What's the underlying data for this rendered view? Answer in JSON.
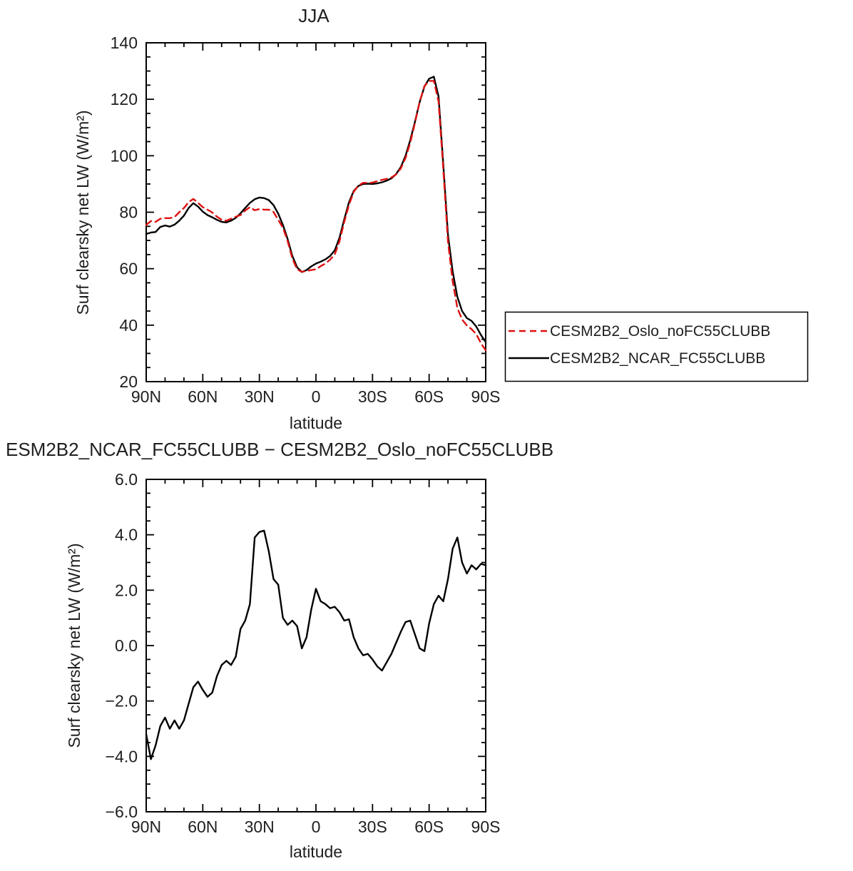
{
  "page": {
    "background": "#ffffff"
  },
  "colors": {
    "axis": "#000000",
    "series_red": "#dd1111",
    "series_black": "#000000",
    "text": "#1f1f1f"
  },
  "chart_data": [
    {
      "type": "line",
      "title": "JJA",
      "xlabel": "latitude",
      "ylabel": "Surf clearsky net LW (W/m²)",
      "xlim": [
        90,
        -90
      ],
      "ylim": [
        20,
        140
      ],
      "xtick_values": [
        90,
        60,
        30,
        0,
        -30,
        -60,
        -90
      ],
      "xtick_labels": [
        "90N",
        "60N",
        "30N",
        "0",
        "30S",
        "60S",
        "90S"
      ],
      "x_minor_step": 10,
      "ytick_values": [
        20,
        40,
        60,
        80,
        100,
        120,
        140
      ],
      "ytick_labels": [
        "20",
        "40",
        "60",
        "80",
        "100",
        "120",
        "140"
      ],
      "y_minor_step": 5,
      "grid": false,
      "legend_position": "outside-right-bottom",
      "x": [
        90,
        87.5,
        85,
        82.5,
        80,
        77.5,
        75,
        72.5,
        70,
        67.5,
        65,
        62.5,
        60,
        57.5,
        55,
        52.5,
        50,
        47.5,
        45,
        42.5,
        40,
        37.5,
        35,
        32.5,
        30,
        27.5,
        25,
        22.5,
        20,
        17.5,
        15,
        12.5,
        10,
        7.5,
        5,
        2.5,
        0,
        -2.5,
        -5,
        -7.5,
        -10,
        -12.5,
        -15,
        -17.5,
        -20,
        -22.5,
        -25,
        -27.5,
        -30,
        -32.5,
        -35,
        -37.5,
        -40,
        -42.5,
        -45,
        -47.5,
        -50,
        -52.5,
        -55,
        -57.5,
        -60,
        -62.5,
        -65,
        -67.5,
        -70,
        -72.5,
        -75,
        -77.5,
        -80,
        -82.5,
        -85,
        -87.5,
        -90
      ],
      "series": [
        {
          "name": "CESM2B2_Oslo_noFC55CLUBB",
          "color": "#dd1111",
          "style": "dashed",
          "dash": "9 6",
          "values": [
            75.5,
            76.9,
            76.6,
            77.7,
            77.9,
            77.9,
            78.3,
            80.0,
            81.5,
            83.6,
            84.7,
            83.3,
            81.8,
            80.9,
            79.9,
            78.4,
            77.3,
            77.0,
            77.7,
            78.4,
            79.0,
            80.6,
            81.8,
            80.7,
            81.1,
            80.9,
            80.9,
            80.1,
            77.3,
            74.5,
            69.8,
            63.6,
            59.8,
            58.9,
            59.2,
            59.5,
            59.8,
            60.9,
            61.8,
            63.2,
            65.1,
            69.8,
            76.6,
            82.6,
            87.2,
            89.4,
            90.4,
            90.4,
            90.5,
            91.0,
            91.5,
            91.8,
            92.3,
            93.4,
            95.5,
            99.2,
            104.6,
            111.6,
            119.1,
            124.7,
            126.5,
            126.5,
            119.2,
            95.4,
            69.6,
            55.5,
            46.1,
            42.0,
            39.9,
            38.6,
            36.8,
            33.6,
            31.1
          ]
        },
        {
          "name": "CESM2B2_NCAR_FC55CLUBB",
          "color": "#000000",
          "style": "solid",
          "dash": "",
          "values": [
            72.3,
            72.8,
            73.0,
            74.8,
            75.3,
            74.9,
            75.6,
            77.0,
            78.8,
            81.5,
            83.2,
            82.0,
            80.2,
            79.0,
            78.2,
            77.3,
            76.6,
            76.4,
            77.0,
            78.0,
            79.6,
            81.5,
            83.3,
            84.6,
            85.2,
            85.0,
            84.3,
            82.5,
            79.5,
            75.5,
            70.5,
            64.5,
            60.5,
            58.8,
            59.5,
            60.8,
            61.8,
            62.5,
            63.3,
            64.5,
            66.5,
            71.0,
            77.5,
            83.5,
            87.5,
            89.3,
            90.0,
            90.1,
            90.0,
            90.2,
            90.6,
            91.2,
            92.0,
            93.5,
            96.0,
            100.0,
            105.5,
            112.0,
            119.0,
            124.5,
            127.3,
            128.0,
            121.0,
            97.0,
            72.0,
            59.0,
            50.0,
            45.0,
            42.5,
            41.5,
            39.5,
            36.5,
            34.0
          ]
        }
      ]
    },
    {
      "type": "line",
      "title": "ESM2B2_NCAR_FC55CLUBB − CESM2B2_Oslo_noFC55CLUBB",
      "xlabel": "latitude",
      "ylabel": "Surf clearsky net LW (W/m²)",
      "xlim": [
        90,
        -90
      ],
      "ylim": [
        -6,
        6
      ],
      "xtick_values": [
        90,
        60,
        30,
        0,
        -30,
        -60,
        -90
      ],
      "xtick_labels": [
        "90N",
        "60N",
        "30N",
        "0",
        "30S",
        "60S",
        "90S"
      ],
      "x_minor_step": 10,
      "ytick_values": [
        -6,
        -4,
        -2,
        0,
        2,
        4,
        6
      ],
      "ytick_labels": [
        "−6.0",
        "−4.0",
        "−2.0",
        "0.0",
        "2.0",
        "4.0",
        "6.0"
      ],
      "y_minor_step": 0.5,
      "grid": false,
      "x": [
        90,
        87.5,
        85,
        82.5,
        80,
        77.5,
        75,
        72.5,
        70,
        67.5,
        65,
        62.5,
        60,
        57.5,
        55,
        52.5,
        50,
        47.5,
        45,
        42.5,
        40,
        37.5,
        35,
        32.5,
        30,
        27.5,
        25,
        22.5,
        20,
        17.5,
        15,
        12.5,
        10,
        7.5,
        5,
        2.5,
        0,
        -2.5,
        -5,
        -7.5,
        -10,
        -12.5,
        -15,
        -17.5,
        -20,
        -22.5,
        -25,
        -27.5,
        -30,
        -32.5,
        -35,
        -37.5,
        -40,
        -42.5,
        -45,
        -47.5,
        -50,
        -52.5,
        -55,
        -57.5,
        -60,
        -62.5,
        -65,
        -67.5,
        -70,
        -72.5,
        -75,
        -77.5,
        -80,
        -82.5,
        -85,
        -87.5,
        -90
      ],
      "series": [
        {
          "name": "CESM2B2_NCAR_FC55CLUBB minus CESM2B2_Oslo_noFC55CLUBB",
          "color": "#000000",
          "style": "solid",
          "dash": "",
          "values": [
            -3.2,
            -4.1,
            -3.6,
            -2.9,
            -2.6,
            -3.0,
            -2.7,
            -3.0,
            -2.7,
            -2.1,
            -1.5,
            -1.3,
            -1.6,
            -1.85,
            -1.7,
            -1.1,
            -0.7,
            -0.55,
            -0.7,
            -0.4,
            0.6,
            0.9,
            1.5,
            3.9,
            4.1,
            4.15,
            3.4,
            2.4,
            2.2,
            1.0,
            0.75,
            0.9,
            0.7,
            -0.1,
            0.3,
            1.3,
            2.05,
            1.6,
            1.5,
            1.35,
            1.4,
            1.2,
            0.9,
            0.95,
            0.3,
            -0.1,
            -0.35,
            -0.3,
            -0.5,
            -0.75,
            -0.9,
            -0.6,
            -0.3,
            0.1,
            0.5,
            0.85,
            0.9,
            0.4,
            -0.1,
            -0.2,
            0.8,
            1.5,
            1.8,
            1.6,
            2.4,
            3.5,
            3.9,
            3.0,
            2.6,
            2.9,
            2.75,
            2.95,
            2.9
          ]
        }
      ]
    }
  ]
}
